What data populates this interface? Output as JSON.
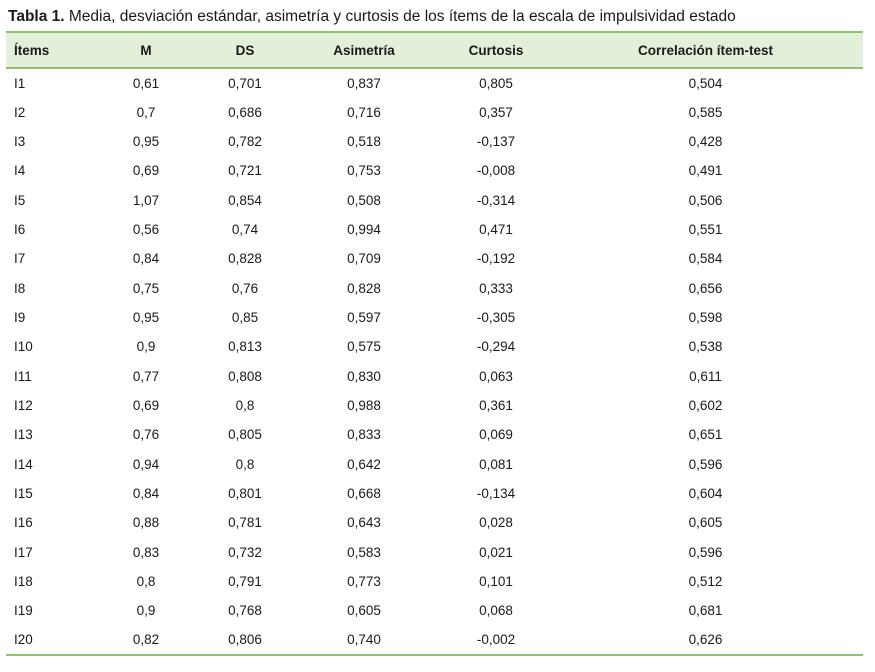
{
  "caption": {
    "label": "Tabla 1.",
    "text": "Media, desviación estándar, asimetría y curtosis de los ítems de la escala de impulsividad estado"
  },
  "table": {
    "headers": [
      "Ítems",
      "M",
      "DS",
      "Asimetría",
      "Curtosis",
      "Correlación ítem-test"
    ],
    "rows": [
      [
        "I1",
        "0,61",
        "0,701",
        "0,837",
        "0,805",
        "0,504"
      ],
      [
        "I2",
        "0,7",
        "0,686",
        "0,716",
        "0,357",
        "0,585"
      ],
      [
        "I3",
        "0,95",
        "0,782",
        "0,518",
        "-0,137",
        "0,428"
      ],
      [
        "I4",
        "0,69",
        "0,721",
        "0,753",
        "-0,008",
        "0,491"
      ],
      [
        "I5",
        "1,07",
        "0,854",
        "0,508",
        "-0,314",
        "0,506"
      ],
      [
        "I6",
        "0,56",
        "0,74",
        "0,994",
        "0,471",
        "0,551"
      ],
      [
        "I7",
        "0,84",
        "0,828",
        "0,709",
        "-0,192",
        "0,584"
      ],
      [
        "I8",
        "0,75",
        "0,76",
        "0,828",
        "0,333",
        "0,656"
      ],
      [
        "I9",
        "0,95",
        "0,85",
        "0,597",
        "-0,305",
        "0,598"
      ],
      [
        "I10",
        "0,9",
        "0,813",
        "0,575",
        "-0,294",
        "0,538"
      ],
      [
        "I11",
        "0,77",
        "0,808",
        "0,830",
        "0,063",
        "0,611"
      ],
      [
        "I12",
        "0,69",
        "0,8",
        "0,988",
        "0,361",
        "0,602"
      ],
      [
        "I13",
        "0,76",
        "0,805",
        "0,833",
        "0,069",
        "0,651"
      ],
      [
        "I14",
        "0,94",
        "0,8",
        "0,642",
        "0,081",
        "0,596"
      ],
      [
        "I15",
        "0,84",
        "0,801",
        "0,668",
        "-0,134",
        "0,604"
      ],
      [
        "I16",
        "0,88",
        "0,781",
        "0,643",
        "0,028",
        "0,605"
      ],
      [
        "I17",
        "0,83",
        "0,732",
        "0,583",
        "0,021",
        "0,596"
      ],
      [
        "I18",
        "0,8",
        "0,791",
        "0,773",
        "0,101",
        "0,512"
      ],
      [
        "I19",
        "0,9",
        "0,768",
        "0,605",
        "0,068",
        "0,681"
      ],
      [
        "I20",
        "0,82",
        "0,806",
        "0,740",
        "-0,002",
        "0,626"
      ]
    ]
  },
  "colors": {
    "header_bg": "#e2efd9",
    "rule": "#8dc26f"
  }
}
